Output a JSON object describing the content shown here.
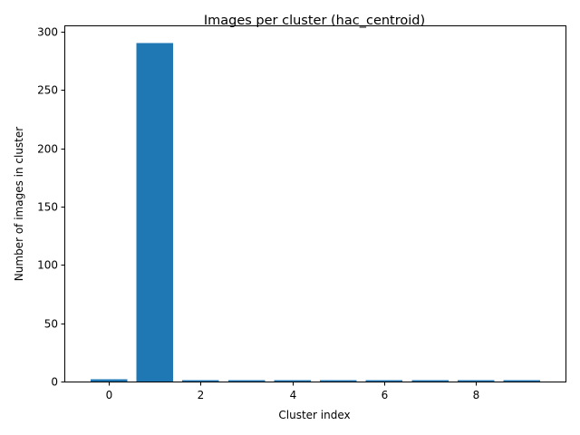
{
  "chart_data": {
    "type": "bar",
    "title": "Images per cluster (hac_centroid)",
    "xlabel": "Cluster index",
    "ylabel": "Number of images in cluster",
    "categories": [
      0,
      1,
      2,
      3,
      4,
      5,
      6,
      7,
      8,
      9
    ],
    "values": [
      2,
      290,
      1,
      1,
      1,
      1,
      1,
      1,
      1,
      1
    ],
    "xlim": [
      -0.95,
      9.95
    ],
    "ylim": [
      0,
      304.5
    ],
    "xticks": [
      0,
      2,
      4,
      6,
      8
    ],
    "yticks": [
      0,
      50,
      100,
      150,
      200,
      250,
      300
    ],
    "bar_color": "#1f77b4",
    "grid": false,
    "legend": "none"
  }
}
